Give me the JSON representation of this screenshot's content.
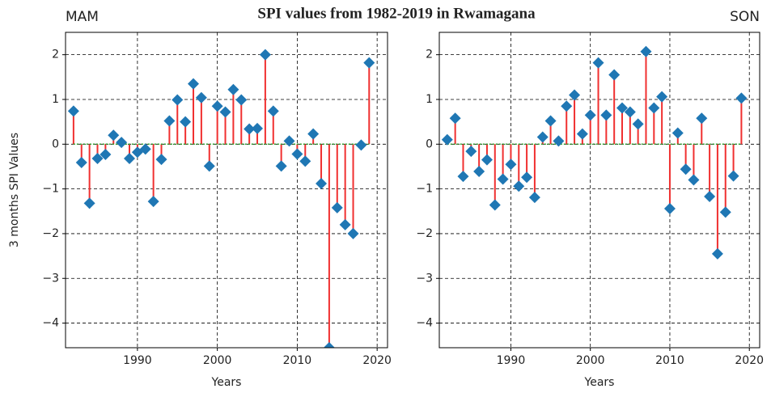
{
  "title": "SPI values from 1982-2019 in Rwamagana",
  "chart_data": [
    {
      "type": "stem",
      "title": "MAM",
      "title_loc": "left",
      "xlabel": "Years",
      "ylabel": "3 months SPI Values",
      "stem_color": "#f03030",
      "marker_color": "#1f77b4",
      "baseline_color": "#2ca02c",
      "grid": true,
      "x": [
        1982,
        1983,
        1984,
        1985,
        1986,
        1987,
        1988,
        1989,
        1990,
        1991,
        1992,
        1993,
        1994,
        1995,
        1996,
        1997,
        1998,
        1999,
        2000,
        2001,
        2002,
        2003,
        2004,
        2005,
        2006,
        2007,
        2008,
        2009,
        2010,
        2011,
        2012,
        2013,
        2014,
        2015,
        2016,
        2017,
        2018,
        2019
      ],
      "values": [
        0.74,
        -0.41,
        -1.32,
        -0.32,
        -0.23,
        0.2,
        0.04,
        -0.32,
        -0.18,
        -0.11,
        -1.28,
        -0.34,
        0.52,
        0.99,
        0.5,
        1.35,
        1.04,
        -0.49,
        0.85,
        0.72,
        1.22,
        0.99,
        0.34,
        0.35,
        2.0,
        0.74,
        -0.49,
        0.07,
        -0.22,
        -0.38,
        0.23,
        -0.88,
        -4.55,
        -1.42,
        -1.8,
        -2.0,
        -0.02,
        1.82
      ],
      "xlim": [
        1981,
        2021.3
      ],
      "ylim": [
        -4.55,
        2.5
      ],
      "xticks": [
        1990,
        2000,
        2010,
        2020
      ],
      "yticks": [
        {
          "value": -4,
          "label": "−4"
        },
        {
          "value": -3,
          "label": "−3"
        },
        {
          "value": -2,
          "label": "−2"
        },
        {
          "value": -1,
          "label": "−1"
        },
        0,
        1,
        2
      ]
    },
    {
      "type": "stem",
      "title": "SON",
      "title_loc": "right",
      "xlabel": "Years",
      "stem_color": "#f03030",
      "marker_color": "#1f77b4",
      "baseline_color": "#2ca02c",
      "grid": true,
      "x": [
        1982,
        1983,
        1984,
        1985,
        1986,
        1987,
        1988,
        1989,
        1990,
        1991,
        1992,
        1993,
        1994,
        1995,
        1996,
        1997,
        1998,
        1999,
        2000,
        2001,
        2002,
        2003,
        2004,
        2005,
        2006,
        2007,
        2008,
        2009,
        2010,
        2011,
        2012,
        2013,
        2014,
        2015,
        2016,
        2017,
        2018,
        2019
      ],
      "values": [
        0.1,
        0.58,
        -0.72,
        -0.16,
        -0.61,
        -0.35,
        -1.36,
        -0.78,
        -0.45,
        -0.94,
        -0.74,
        -1.19,
        0.16,
        0.52,
        0.07,
        0.85,
        1.1,
        0.23,
        0.65,
        1.82,
        0.65,
        1.55,
        0.81,
        0.72,
        0.45,
        2.07,
        0.81,
        1.06,
        -1.44,
        0.25,
        -0.56,
        -0.8,
        0.58,
        -1.17,
        -2.45,
        -1.52,
        -0.71,
        1.03
      ],
      "xlim": [
        1981,
        2021.3
      ],
      "ylim": [
        -4.55,
        2.5
      ],
      "xticks": [
        1990,
        2000,
        2010,
        2020
      ],
      "yticks": [
        {
          "value": -4,
          "label": "−4"
        },
        {
          "value": -3,
          "label": "−3"
        },
        {
          "value": -2,
          "label": "−2"
        },
        {
          "value": -1,
          "label": "−1"
        },
        0,
        1,
        2
      ]
    }
  ]
}
